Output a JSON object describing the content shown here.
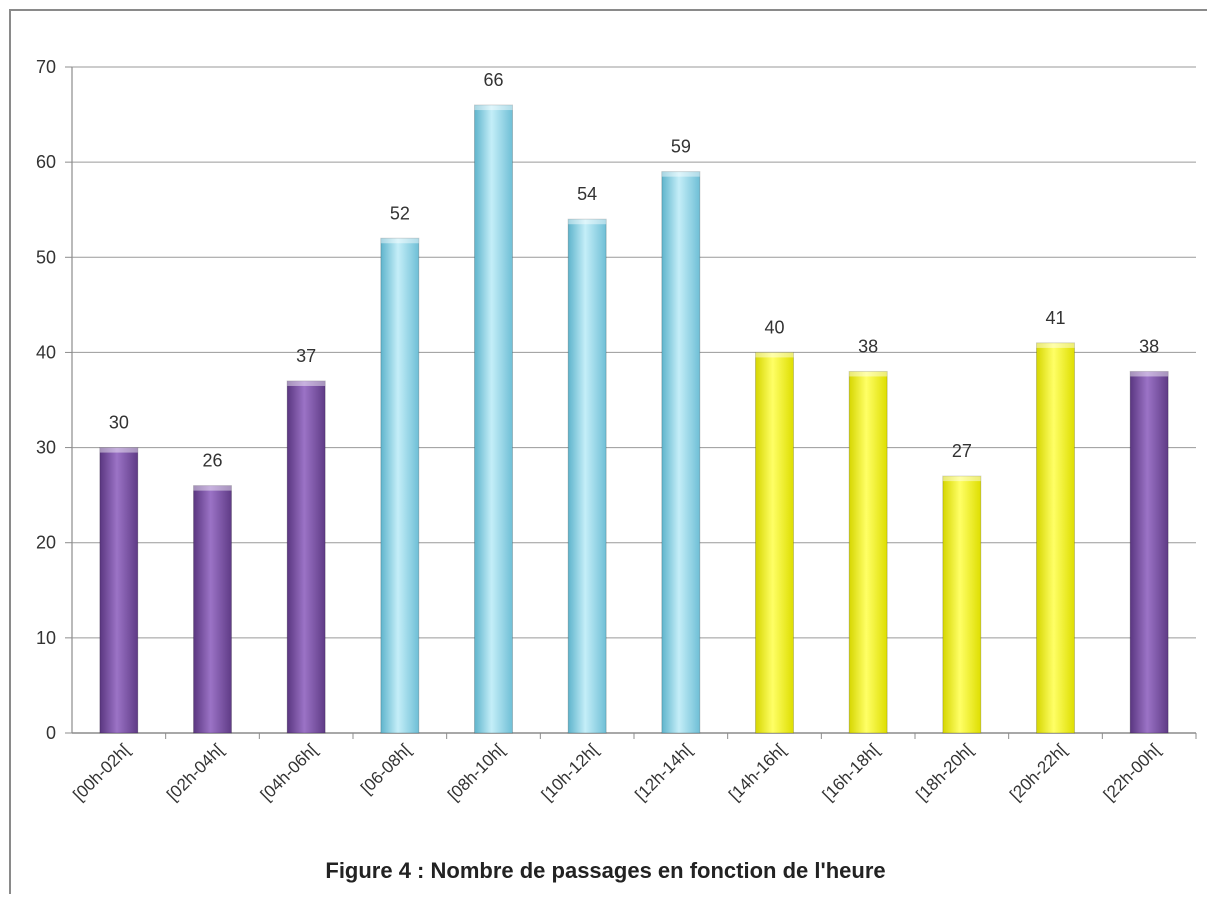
{
  "caption": "Figure 4 : Nombre de passages en fonction de l'heure",
  "chart_data": {
    "type": "bar",
    "categories": [
      "[00h-02h[",
      "[02h-04h[",
      "[04h-06h[",
      "[06-08h[",
      "[08h-10h[",
      "[10h-12h[",
      "[12h-14h[",
      "[14h-16h[",
      "[16h-18h[",
      "[18h-20h[",
      "[20h-22h[",
      "[22h-00h["
    ],
    "values": [
      30,
      26,
      37,
      52,
      66,
      54,
      59,
      40,
      38,
      27,
      41,
      38
    ],
    "bar_colors": [
      "#7b4fa6",
      "#7b4fa6",
      "#7b4fa6",
      "#8fd3e6",
      "#8fd3e6",
      "#8fd3e6",
      "#8fd3e6",
      "#ffff00",
      "#ffff00",
      "#ffff00",
      "#ffff00",
      "#7b4fa6"
    ],
    "ylim": [
      0,
      70
    ],
    "yticks": [
      0,
      10,
      20,
      30,
      40,
      50,
      60,
      70
    ],
    "grid": true,
    "data_labels": true,
    "legend": "none"
  }
}
